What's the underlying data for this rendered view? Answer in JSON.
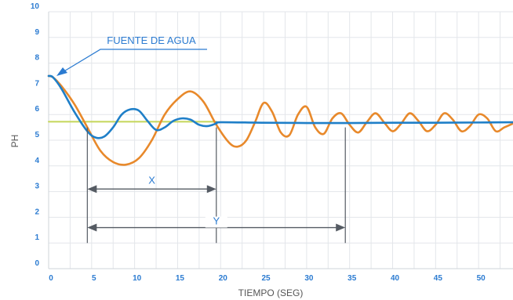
{
  "chart_data": {
    "type": "line",
    "xlabel": "TIEMPO (SEG)",
    "ylabel": "PH",
    "xlim": [
      0,
      54
    ],
    "ylim": [
      0,
      10
    ],
    "x_ticks": [
      0,
      5,
      10,
      15,
      20,
      25,
      30,
      35,
      40,
      45,
      50
    ],
    "y_ticks": [
      0,
      1,
      2,
      3,
      4,
      5,
      6,
      7,
      8,
      9,
      10
    ],
    "grid": true,
    "series": [
      {
        "color": "#e8892b",
        "x": [
          0,
          0.5,
          1.5,
          3,
          4.5,
          6,
          7.5,
          9,
          10.5,
          12,
          13.5,
          15,
          16.5,
          18,
          19.5,
          21,
          22,
          23,
          24,
          25,
          26,
          27,
          28,
          29,
          30,
          31,
          32,
          33,
          34,
          35,
          36,
          37,
          38,
          39,
          40,
          41,
          42,
          43,
          44,
          45,
          46,
          47,
          48,
          49,
          50,
          51,
          52,
          53,
          54
        ],
        "values": [
          7.5,
          7.45,
          7.1,
          6.4,
          5.5,
          4.6,
          4.15,
          4.05,
          4.3,
          5.0,
          6.0,
          6.6,
          6.9,
          6.5,
          5.6,
          4.9,
          4.75,
          5.0,
          5.7,
          6.45,
          6.1,
          5.3,
          5.2,
          6.0,
          6.3,
          5.5,
          5.25,
          5.85,
          6.05,
          5.6,
          5.3,
          5.7,
          6.05,
          5.7,
          5.35,
          5.65,
          6.05,
          5.75,
          5.35,
          5.6,
          6.05,
          5.8,
          5.35,
          5.55,
          6.0,
          5.85,
          5.35,
          5.5,
          5.65
        ]
      },
      {
        "color": "#1f7fc8",
        "x": [
          0,
          0.5,
          1.5,
          3,
          4.5,
          5.5,
          6.5,
          7.5,
          8.5,
          9.5,
          10.5,
          11.5,
          12.5,
          13.5,
          14.5,
          15.5,
          16.5,
          17.5,
          18.5,
          19.5,
          20,
          25,
          30,
          35,
          40,
          45,
          50,
          54
        ],
        "values": [
          7.5,
          7.45,
          7.0,
          6.1,
          5.35,
          5.1,
          5.15,
          5.5,
          6.0,
          6.2,
          6.15,
          5.75,
          5.4,
          5.5,
          5.75,
          5.85,
          5.8,
          5.6,
          5.55,
          5.65,
          5.7,
          5.68,
          5.67,
          5.67,
          5.68,
          5.68,
          5.69,
          5.7
        ]
      },
      {
        "color": "#c5d65a",
        "x": [
          0,
          19.5
        ],
        "values": [
          5.72,
          5.72
        ]
      }
    ],
    "annotations": {
      "source": "FUENTE DE AGUA",
      "x_label": "X",
      "y_label": "Y",
      "x_interval": [
        4.5,
        19.5
      ],
      "y_interval": [
        4.5,
        34.5
      ]
    }
  }
}
